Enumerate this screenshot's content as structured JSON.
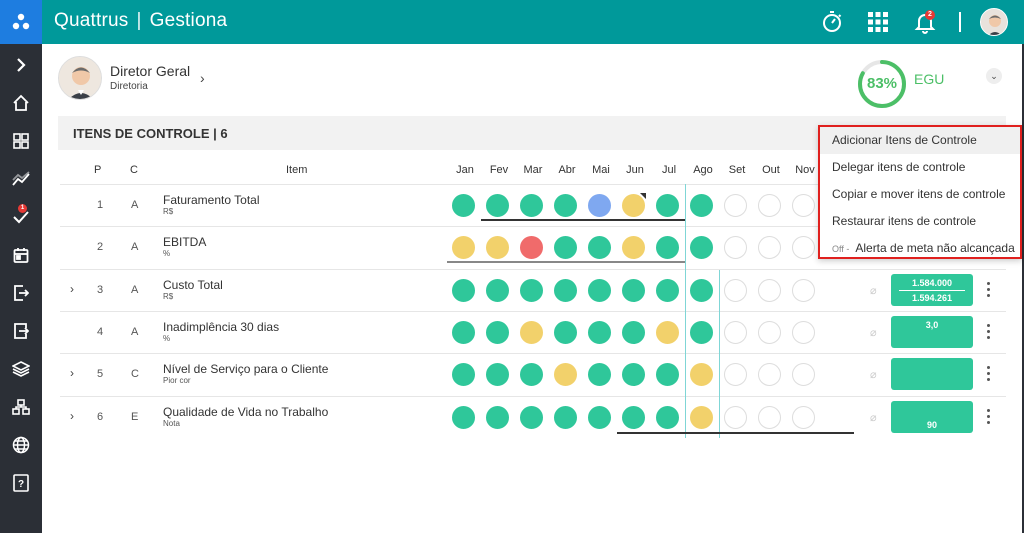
{
  "app": {
    "brand": "Quattrus",
    "module": "Gestiona",
    "notifications": "2",
    "sidebar_badge": "1"
  },
  "colors": {
    "topbar": "#00999a",
    "logo": "#1e7de0",
    "green": "#2fc79a",
    "yellow": "#f2d16b",
    "red": "#f06b6b",
    "blue": "#7fa8f0",
    "menu_border": "#e0201e"
  },
  "profile": {
    "name": "Diretor Geral",
    "role": "Diretoria"
  },
  "score": {
    "percent": "83%",
    "label": "EGU",
    "fraction": 0.83
  },
  "section": {
    "title": "ITENS DE CONTROLE | 6"
  },
  "table": {
    "headers": {
      "p": "P",
      "c": "C",
      "item": "Item"
    },
    "months": [
      "Jan",
      "Fev",
      "Mar",
      "Abr",
      "Mai",
      "Jun",
      "Jul",
      "Ago",
      "Set",
      "Out",
      "Nov"
    ],
    "rows": [
      {
        "p": "1",
        "c": "A",
        "name": "Faturamento Total",
        "unit": "R$",
        "expand": false,
        "status": [
          "green",
          "green",
          "green",
          "green",
          "blue",
          "yellow",
          "green",
          "green",
          "empty",
          "empty",
          "empty"
        ],
        "goal1": "",
        "goal2": ""
      },
      {
        "p": "2",
        "c": "A",
        "name": "EBITDA",
        "unit": "%",
        "expand": false,
        "status": [
          "yellow",
          "yellow",
          "red",
          "green",
          "green",
          "yellow",
          "green",
          "green",
          "empty",
          "empty",
          "empty"
        ],
        "goal1": "",
        "goal2": ""
      },
      {
        "p": "3",
        "c": "A",
        "name": "Custo Total",
        "unit": "R$",
        "expand": true,
        "status": [
          "green",
          "green",
          "green",
          "green",
          "green",
          "green",
          "green",
          "green",
          "empty",
          "empty",
          "empty"
        ],
        "goal1": "1.584.000",
        "goal2": "1.594.261"
      },
      {
        "p": "4",
        "c": "A",
        "name": "Inadimplência 30 dias",
        "unit": "%",
        "expand": false,
        "status": [
          "green",
          "green",
          "yellow",
          "green",
          "green",
          "green",
          "yellow",
          "green",
          "empty",
          "empty",
          "empty"
        ],
        "goal1": "3,0",
        "goal2": ""
      },
      {
        "p": "5",
        "c": "C",
        "name": "Nível de Serviço para o Cliente",
        "unit": "Pior cor",
        "expand": true,
        "status": [
          "green",
          "green",
          "green",
          "yellow",
          "green",
          "green",
          "green",
          "yellow",
          "empty",
          "empty",
          "empty"
        ],
        "goal1": "",
        "goal2": ""
      },
      {
        "p": "6",
        "c": "E",
        "name": "Qualidade de Vida no Trabalho",
        "unit": "Nota",
        "expand": true,
        "status": [
          "green",
          "green",
          "green",
          "green",
          "green",
          "green",
          "green",
          "yellow",
          "empty",
          "empty",
          "empty"
        ],
        "goal1": "",
        "goal2": "90"
      }
    ]
  },
  "menu": {
    "items": [
      "Adicionar Itens de Controle",
      "Delegar itens de controle",
      "Copiar e mover itens de controle",
      "Restaurar itens de controle"
    ],
    "toggle_state": "Off -",
    "toggle_label": "Alerta de meta não alcançada"
  },
  "icons": {
    "topbar": [
      "logo-icon",
      "stopwatch-icon",
      "apps-grid-icon",
      "bell-icon",
      "avatar"
    ],
    "sidebar": [
      "chevron-right-icon",
      "home-icon",
      "dashboard-icon",
      "trend-icon",
      "check-icon",
      "calendar-icon",
      "exit-icon",
      "export-icon",
      "layers-icon",
      "org-chart-icon",
      "globe-icon",
      "help-icon"
    ]
  }
}
